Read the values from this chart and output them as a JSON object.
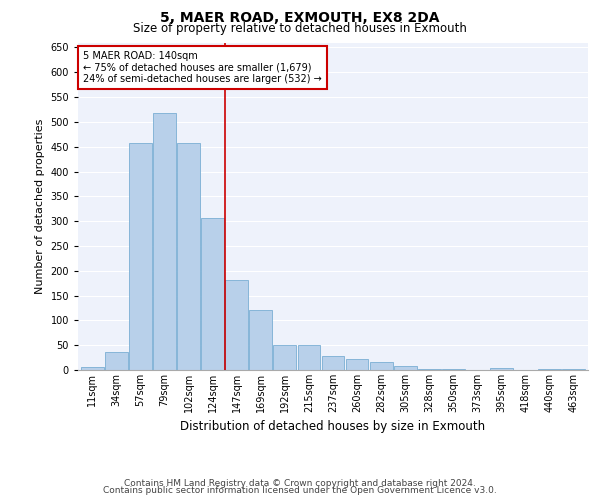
{
  "title": "5, MAER ROAD, EXMOUTH, EX8 2DA",
  "subtitle": "Size of property relative to detached houses in Exmouth",
  "xlabel": "Distribution of detached houses by size in Exmouth",
  "ylabel": "Number of detached properties",
  "categories": [
    "11sqm",
    "34sqm",
    "57sqm",
    "79sqm",
    "102sqm",
    "124sqm",
    "147sqm",
    "169sqm",
    "192sqm",
    "215sqm",
    "237sqm",
    "260sqm",
    "282sqm",
    "305sqm",
    "328sqm",
    "350sqm",
    "373sqm",
    "395sqm",
    "418sqm",
    "440sqm",
    "463sqm"
  ],
  "values": [
    7,
    37,
    458,
    517,
    457,
    307,
    181,
    120,
    50,
    51,
    29,
    22,
    16,
    8,
    3,
    2,
    1,
    5,
    1,
    3,
    2
  ],
  "bar_color": "#b8d0ea",
  "bar_edge_color": "#7aaed4",
  "vline_x": 5.5,
  "vline_color": "#cc0000",
  "annotation_text": "5 MAER ROAD: 140sqm\n← 75% of detached houses are smaller (1,679)\n24% of semi-detached houses are larger (532) →",
  "annotation_box_color": "#ffffff",
  "annotation_box_edge_color": "#cc0000",
  "ylim": [
    0,
    660
  ],
  "yticks": [
    0,
    50,
    100,
    150,
    200,
    250,
    300,
    350,
    400,
    450,
    500,
    550,
    600,
    650
  ],
  "background_color": "#eef2fb",
  "grid_color": "#ffffff",
  "footer_line1": "Contains HM Land Registry data © Crown copyright and database right 2024.",
  "footer_line2": "Contains public sector information licensed under the Open Government Licence v3.0.",
  "title_fontsize": 10,
  "subtitle_fontsize": 8.5,
  "xlabel_fontsize": 8.5,
  "ylabel_fontsize": 8,
  "tick_fontsize": 7,
  "footer_fontsize": 6.5,
  "annotation_fontsize": 7
}
